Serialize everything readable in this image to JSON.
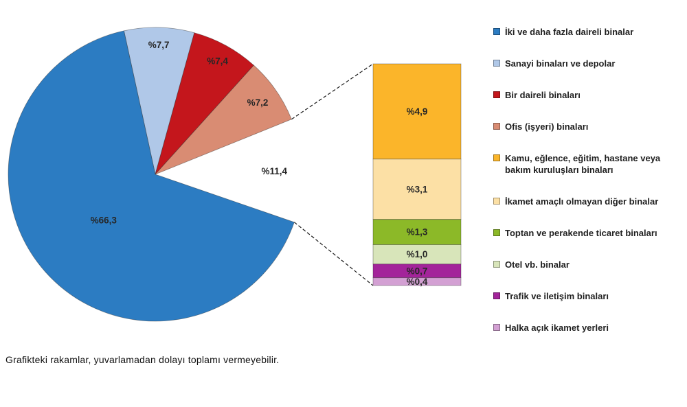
{
  "chart_data": {
    "type": "pie-of-bar",
    "title": "",
    "units": "percent",
    "grid": false,
    "legend_position": "right",
    "pie": {
      "total": 100,
      "slices": [
        {
          "key": "sanayi-binalari-ve-depolar",
          "name": "Sanayi binaları ve depolar",
          "value": 7.7,
          "display": "%7,7",
          "color": "#B0C8E8",
          "label_r": 0.88
        },
        {
          "key": "bir-daireli-binalar",
          "name": "Bir daireli binaları",
          "value": 7.4,
          "display": "%7,4",
          "color": "#C4161C",
          "label_r": 0.88
        },
        {
          "key": "ofis-isyeri-binalari",
          "name": "Ofis (işyeri) binaları",
          "value": 7.2,
          "display": "%7,2",
          "color": "#D98C73",
          "label_r": 0.85
        },
        {
          "key": "other-group",
          "value": 11.4,
          "display": "%11,4",
          "gap": true,
          "label_r": 0.81
        },
        {
          "key": "iki-ve-daha-fazla-daireli-binalar",
          "name": "İki ve daha fazla daireli binalar",
          "value": 66.3,
          "display": "%66,3",
          "color": "#2C7CC2",
          "label_r": 0.47
        }
      ]
    },
    "bar": {
      "total": 11.4,
      "segments": [
        {
          "key": "kamu-eglence-egitim-hastane-bakim",
          "name": "Kamu, eğlence, eğitim, hastane veya bakım kuruluşları binaları",
          "value": 4.9,
          "display": "%4,9",
          "color": "#FBB52A"
        },
        {
          "key": "ikamet-amacli-olmayan-diger",
          "name": "İkamet amaçlı olmayan diğer binalar",
          "value": 3.1,
          "display": "%3,1",
          "color": "#FCE0A5"
        },
        {
          "key": "toptan-ve-perakende-ticaret",
          "name": "Toptan ve perakende ticaret binaları",
          "value": 1.3,
          "display": "%1,3",
          "color": "#8CB928"
        },
        {
          "key": "otel-vb",
          "name": "Otel vb. binalar",
          "value": 1.0,
          "display": "%1,0",
          "color": "#D8E5BA"
        },
        {
          "key": "trafik-ve-iletisim",
          "name": "Trafik ve iletişim binaları",
          "value": 0.7,
          "display": "%0,7",
          "color": "#A3249A"
        },
        {
          "key": "halka-acik-ikamet",
          "name": "Halka açık ikamet yerleri",
          "value": 0.4,
          "display": "%0,4",
          "color": "#D3A0D3"
        }
      ]
    }
  },
  "legend": {
    "items": [
      {
        "label": "İki ve daha fazla daireli binalar",
        "color": "#2C7CC2"
      },
      {
        "label": "Sanayi binaları ve depolar",
        "color": "#B0C8E8"
      },
      {
        "label": "Bir daireli binaları",
        "color": "#C4161C"
      },
      {
        "label": "Ofis (işyeri) binaları",
        "color": "#D98C73"
      },
      {
        "label": "Kamu, eğlence, eğitim, hastane veya bakım kuruluşları binaları",
        "color": "#FBB52A"
      },
      {
        "label": "İkamet amaçlı olmayan diğer binalar",
        "color": "#FCE0A5"
      },
      {
        "label": "Toptan ve perakende ticaret binaları",
        "color": "#8CB928"
      },
      {
        "label": "Otel vb. binalar",
        "color": "#D8E5BA"
      },
      {
        "label": "Trafik ve iletişim binaları",
        "color": "#A3249A"
      },
      {
        "label": "Halka açık ikamet yerleri",
        "color": "#D3A0D3"
      }
    ]
  },
  "footer": {
    "note": "Grafikteki rakamlar, yuvarlamadan dolayı toplamı vermeyebilir."
  }
}
